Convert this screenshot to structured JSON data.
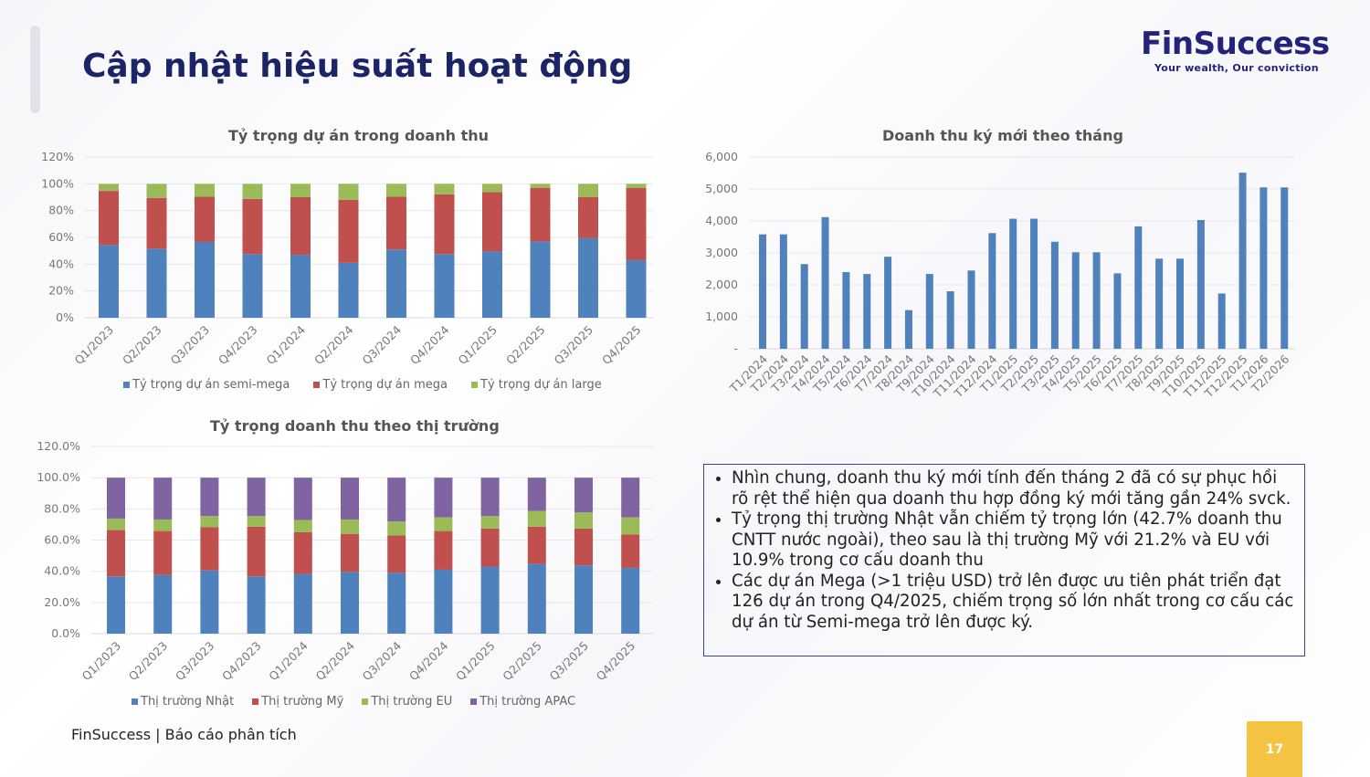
{
  "header": {
    "title": "Cập nhật hiệu suất hoạt động"
  },
  "logo": {
    "word": "FinSuccess",
    "tagline": "Your wealth, Our conviction"
  },
  "notes": [
    "Nhìn chung, doanh thu ký mới tính đến tháng 2 đã có sự phục hồi rõ rệt thể hiện qua doanh thu hợp đồng ký mới tăng gần 24% svck.",
    "Tỷ trọng thị trường Nhật vẫn chiếm tỷ trọng lớn (42.7% doanh thu CNTT nước ngoài), theo sau là thị trường Mỹ với 21.2% và EU với 10.9% trong cơ cấu doanh thu",
    "Các dự án Mega (>1 triệu USD) trở lên được ưu tiên phát triển đạt 126 dự án trong Q4/2025, chiếm trọng số lớn nhất trong cơ cấu các dự án từ Semi-mega trở lên được ký."
  ],
  "footer": {
    "text": "FinSuccess | Báo cáo phân tích",
    "page": "17"
  },
  "chart_data": [
    {
      "type": "bar",
      "stacked": true,
      "title": "Tỷ trọng dự án trong doanh thu",
      "categories": [
        "Q1/2023",
        "Q2/2023",
        "Q3/2023",
        "Q4/2023",
        "Q1/2024",
        "Q2/2024",
        "Q3/2024",
        "Q4/2024",
        "Q1/2025",
        "Q2/2025",
        "Q3/2025",
        "Q4/2025"
      ],
      "series": [
        {
          "name": "Tỷ trọng dự án semi-mega",
          "color": "#4f81bd",
          "values": [
            54.3,
            51.6,
            56.6,
            47.5,
            47.0,
            41.0,
            51.0,
            47.5,
            49.5,
            57.0,
            59.4,
            43.0
          ]
        },
        {
          "name": "Tỷ trọng dự án mega",
          "color": "#c0504d",
          "values": [
            40.4,
            37.9,
            33.8,
            41.3,
            43.0,
            47.0,
            39.4,
            44.7,
            44.3,
            40.0,
            30.6,
            54.0
          ]
        },
        {
          "name": "Tỷ trọng dự án large",
          "color": "#9bbb59",
          "values": [
            5.3,
            10.5,
            9.6,
            11.2,
            10.0,
            12.0,
            9.6,
            7.8,
            6.2,
            3.0,
            10.0,
            3.0
          ]
        }
      ],
      "yticks": [
        "0%",
        "20%",
        "40%",
        "60%",
        "80%",
        "100%",
        "120%"
      ],
      "ylim": [
        0,
        120
      ],
      "legend": "bottom"
    },
    {
      "type": "bar",
      "title": "Doanh thu ký mới theo tháng",
      "categories": [
        "T1/2024",
        "T2/2024",
        "T3/2024",
        "T4/2024",
        "T5/2024",
        "T6/2024",
        "T7/2024",
        "T8/2024",
        "T9/2024",
        "T10/2024",
        "T11/2024",
        "T12/2024",
        "T1/2025",
        "T2/2025",
        "T3/2025",
        "T4/2025",
        "T5/2025",
        "T6/2025",
        "T7/2025",
        "T8/2025",
        "T9/2025",
        "T10/2025",
        "T11/2025",
        "T12/2025",
        "T1/2026",
        "T2/2026"
      ],
      "values": [
        3580,
        3580,
        2650,
        4120,
        2400,
        2340,
        2880,
        1210,
        2340,
        1800,
        2450,
        3620,
        4070,
        4070,
        3350,
        3020,
        3020,
        2360,
        3830,
        2820,
        2820,
        4030,
        1730,
        5510,
        5050,
        5050
      ],
      "color": "#4f81bd",
      "yticks": [
        "-",
        "1,000",
        "2,000",
        "3,000",
        "4,000",
        "5,000",
        "6,000"
      ],
      "ylim": [
        0,
        6000
      ]
    },
    {
      "type": "bar",
      "stacked": true,
      "title": "Tỷ trọng doanh thu theo thị trường",
      "categories": [
        "Q1/2023",
        "Q2/2023",
        "Q3/2023",
        "Q4/2023",
        "Q1/2024",
        "Q2/2024",
        "Q3/2024",
        "Q4/2024",
        "Q1/2025",
        "Q2/2025",
        "Q3/2025",
        "Q4/2025"
      ],
      "series": [
        {
          "name": "Thị trường Nhật",
          "color": "#4f81bd",
          "values": [
            36.7,
            37.7,
            40.6,
            36.7,
            38.3,
            39.6,
            39.0,
            41.0,
            43.0,
            44.7,
            43.8,
            42.2
          ]
        },
        {
          "name": "Thị trường Mỹ",
          "color": "#c0504d",
          "values": [
            29.7,
            28.1,
            27.6,
            31.9,
            26.7,
            24.4,
            24.0,
            24.8,
            24.4,
            23.9,
            23.6,
            21.3
          ]
        },
        {
          "name": "Thị trường EU",
          "color": "#9bbb59",
          "values": [
            7.4,
            7.4,
            7.2,
            6.8,
            7.9,
            9.2,
            8.9,
            8.8,
            8.0,
            10.1,
            10.3,
            11.1
          ]
        },
        {
          "name": "Thị trường APAC",
          "color": "#8064a2",
          "values": [
            26.2,
            26.8,
            24.6,
            24.6,
            27.1,
            26.8,
            28.1,
            25.4,
            24.6,
            21.3,
            22.3,
            25.4
          ]
        }
      ],
      "yticks": [
        "0.0%",
        "20.0%",
        "40.0%",
        "60.0%",
        "80.0%",
        "100.0%",
        "120.0%"
      ],
      "ylim": [
        0,
        120
      ],
      "legend": "bottom"
    }
  ]
}
